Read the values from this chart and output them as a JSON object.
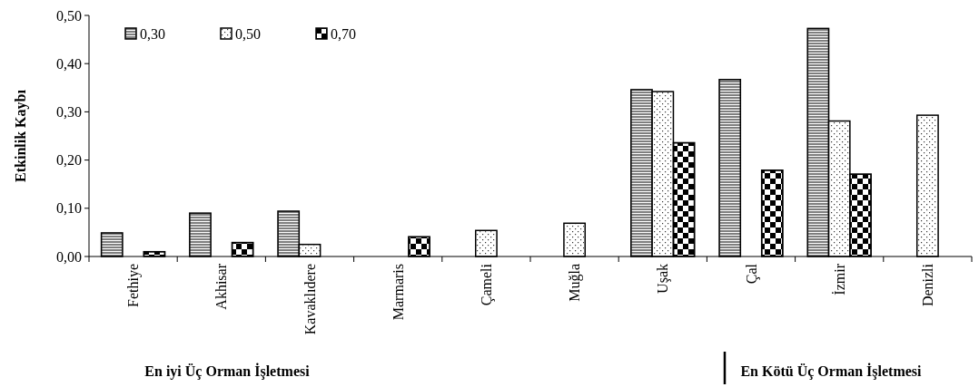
{
  "chart_data": {
    "type": "bar",
    "ylabel": "Etkinlik Kaybı",
    "categories": [
      "Fethiye",
      "Akhisar",
      "Kavaklıdere",
      "Marmaris",
      "Çameli",
      "Muğla",
      "Uşak",
      "Çal",
      "İzmir",
      "Denizli"
    ],
    "series": [
      {
        "name": "0,30",
        "color": "#7f7f7f",
        "values": [
          0.049,
          0.09,
          0.094,
          null,
          null,
          null,
          0.346,
          0.367,
          0.473,
          null
        ]
      },
      {
        "name": "0,50",
        "color": "#ffffff",
        "values": [
          null,
          null,
          0.025,
          null,
          0.054,
          0.069,
          0.342,
          null,
          0.281,
          0.293
        ]
      },
      {
        "name": "0,70",
        "color": "#000000",
        "values": [
          0.01,
          0.029,
          null,
          0.041,
          null,
          null,
          0.236,
          0.179,
          0.171,
          null
        ]
      }
    ],
    "ylim": [
      0,
      0.5
    ],
    "yticks": [
      {
        "value": 0,
        "label": "0,00"
      },
      {
        "value": 0.1,
        "label": "0,10"
      },
      {
        "value": 0.2,
        "label": "0,20"
      },
      {
        "value": 0.3,
        "label": "0,30"
      },
      {
        "value": 0.4,
        "label": "0,40"
      },
      {
        "value": 0.5,
        "label": "0,50"
      }
    ],
    "legend": "top left",
    "annotations": [
      "En iyi Üç Orman İşletmesi",
      "En Kötü Üç Orman İşletmesi"
    ]
  }
}
